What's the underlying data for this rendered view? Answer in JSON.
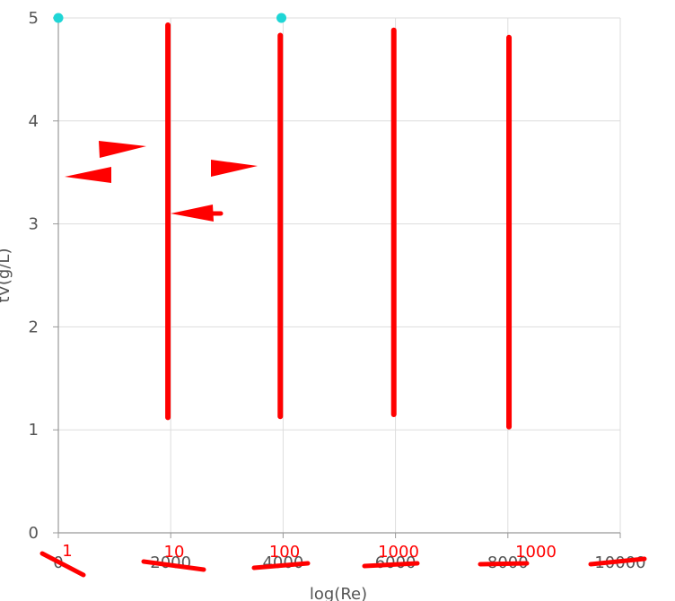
{
  "chart_data": {
    "type": "line",
    "xlabel": "log(Re)",
    "ylabel": "tV(g/L)",
    "xlim": [
      0,
      10000
    ],
    "ylim": [
      0,
      5
    ],
    "x_ticks": [
      "0",
      "2000",
      "4000",
      "6000",
      "8000",
      "10000"
    ],
    "y_ticks": [
      "0",
      "1",
      "2",
      "3",
      "4",
      "5"
    ],
    "grid": true,
    "series": [
      {
        "x": [
          1950,
          1950
        ],
        "y": [
          1.12,
          4.93
        ]
      },
      {
        "x": [
          3950,
          3950
        ],
        "y": [
          1.13,
          4.83
        ]
      },
      {
        "x": [
          5970,
          5970
        ],
        "y": [
          1.15,
          4.88
        ]
      },
      {
        "x": [
          8020,
          8020
        ],
        "y": [
          1.03,
          4.81
        ]
      }
    ],
    "points": [
      {
        "x": 0,
        "y": 5
      },
      {
        "x": 3970,
        "y": 5
      }
    ],
    "annotations": [
      "1",
      "10",
      "100",
      "1000",
      "1000"
    ],
    "colors": {
      "marks": "#ff0000",
      "points": "#1fd6d6",
      "grid": "#dddddd",
      "axis": "#999999"
    }
  }
}
